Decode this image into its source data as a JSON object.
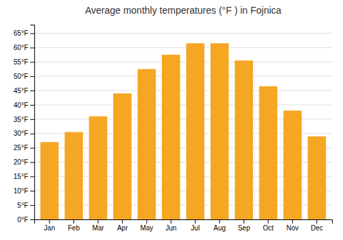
{
  "chart_data": {
    "type": "bar",
    "title": "Average monthly temperatures (°F ) in Fojnica",
    "categories": [
      "Jan",
      "Feb",
      "Mar",
      "Apr",
      "May",
      "Jun",
      "Jul",
      "Aug",
      "Sep",
      "Oct",
      "Nov",
      "Dec"
    ],
    "values": [
      27,
      30.5,
      36,
      44,
      52.5,
      57.5,
      61.5,
      61.5,
      55.5,
      46.5,
      38,
      29
    ],
    "color": "#F5A623",
    "ylim": [
      0,
      68
    ],
    "yticks": [
      {
        "value": 0,
        "label": "0°F"
      },
      {
        "value": 5,
        "label": "5°F"
      },
      {
        "value": 10,
        "label": "10°F"
      },
      {
        "value": 15,
        "label": "15°F"
      },
      {
        "value": 20,
        "label": "20°F"
      },
      {
        "value": 25,
        "label": "25°F"
      },
      {
        "value": 30,
        "label": "30°F"
      },
      {
        "value": 35,
        "label": "35°F"
      },
      {
        "value": 40,
        "label": "40°F"
      },
      {
        "value": 45,
        "label": "45°F"
      },
      {
        "value": 50,
        "label": "50°F"
      },
      {
        "value": 55,
        "label": "55°F"
      },
      {
        "value": 60,
        "label": "60°F"
      },
      {
        "value": 65,
        "label": "65°F"
      }
    ],
    "grid": true
  }
}
